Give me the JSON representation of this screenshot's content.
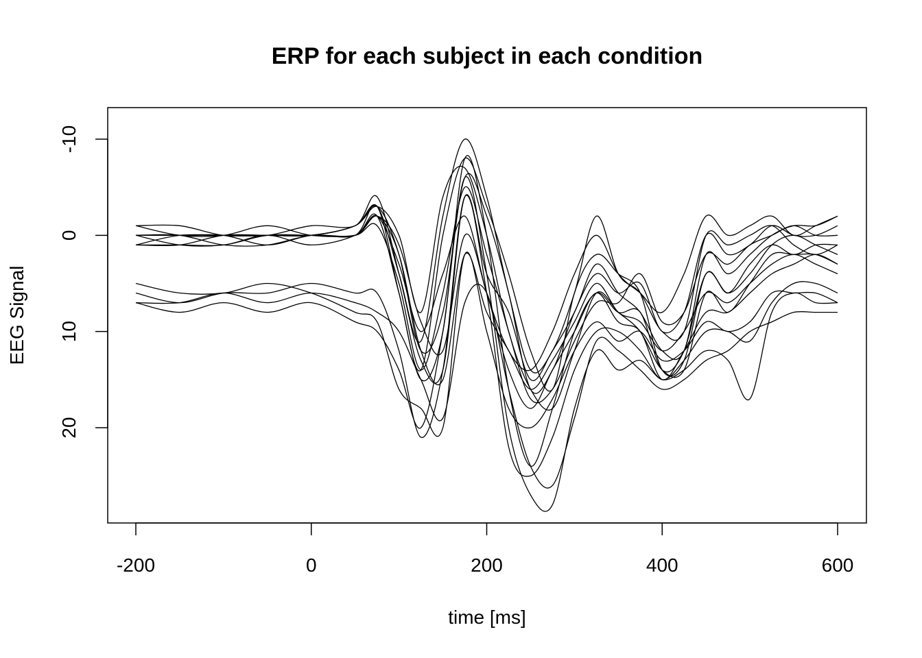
{
  "chart_data": {
    "type": "line",
    "title": "ERP for each subject in each condition",
    "xlabel": "time [ms]",
    "ylabel": "EEG Signal",
    "xlim": [
      -200,
      600
    ],
    "ylim": [
      -10,
      20
    ],
    "y_reversed": true,
    "x_ticks": [
      -200,
      0,
      200,
      400,
      600
    ],
    "y_ticks": [
      -10,
      0,
      10,
      20
    ],
    "x_tick_labels": [
      "-200",
      "0",
      "200",
      "400",
      "600"
    ],
    "y_tick_labels": [
      "-10",
      "0",
      "10",
      "20"
    ],
    "grid": false,
    "legend": "none",
    "line_color": "#000000",
    "x": [
      -200,
      -150,
      -100,
      -50,
      0,
      50,
      75,
      100,
      125,
      150,
      175,
      200,
      225,
      250,
      275,
      300,
      325,
      350,
      375,
      400,
      425,
      450,
      475,
      500,
      525,
      550,
      575,
      600
    ],
    "series": [
      {
        "values": [
          0,
          0,
          0,
          0,
          0,
          -1,
          -3,
          2,
          12,
          8,
          -6,
          -2,
          6,
          16,
          14,
          8,
          4,
          6,
          5,
          10,
          8,
          0,
          2,
          1,
          -1,
          0,
          0,
          -1
        ]
      },
      {
        "values": [
          0,
          0,
          0,
          0,
          -1,
          -1,
          -4,
          4,
          13,
          14,
          -4,
          4,
          8,
          15,
          12,
          8,
          3,
          6,
          8,
          12,
          12,
          2,
          4,
          2,
          0,
          -1,
          -1,
          -2
        ]
      },
      {
        "values": [
          1,
          1,
          1,
          0,
          0,
          0,
          -2,
          6,
          14,
          0,
          -8,
          -3,
          4,
          12,
          16,
          6,
          2,
          4,
          6,
          14,
          13,
          4,
          6,
          3,
          1,
          2,
          1,
          1
        ]
      },
      {
        "values": [
          1,
          0,
          0,
          0,
          0,
          -1,
          -3,
          0,
          8,
          -4,
          -7,
          0,
          10,
          16,
          18,
          12,
          6,
          8,
          10,
          14,
          14,
          6,
          8,
          5,
          2,
          2,
          2,
          3
        ]
      },
      {
        "values": [
          -1,
          -1,
          0,
          0,
          0,
          0,
          -2,
          3,
          10,
          4,
          -2,
          6,
          12,
          14,
          10,
          4,
          0,
          4,
          6,
          8,
          4,
          -2,
          0,
          -1,
          -2,
          0,
          -1,
          -2
        ]
      },
      {
        "values": [
          0,
          0,
          0,
          1,
          0,
          0,
          -3,
          6,
          15,
          10,
          -8,
          0,
          16,
          24,
          18,
          10,
          6,
          8,
          8,
          14,
          12,
          4,
          6,
          4,
          1,
          0,
          1,
          2
        ]
      },
      {
        "values": [
          0,
          1,
          1,
          0,
          1,
          0,
          -2,
          2,
          12,
          15,
          2,
          8,
          12,
          16,
          13,
          9,
          5,
          8,
          9,
          12,
          10,
          6,
          7,
          5,
          3,
          2,
          3,
          4
        ]
      },
      {
        "values": [
          -1,
          0,
          0,
          -1,
          0,
          0,
          -1,
          5,
          14,
          6,
          -5,
          2,
          10,
          17,
          16,
          11,
          7,
          7,
          4,
          9,
          8,
          2,
          3,
          1,
          0,
          -1,
          0,
          0
        ]
      },
      {
        "values": [
          1,
          1,
          0,
          0,
          0,
          -1,
          -3,
          4,
          11,
          -2,
          -10,
          -4,
          6,
          14,
          12,
          6,
          -2,
          4,
          6,
          10,
          10,
          0,
          1,
          0,
          -1,
          1,
          2,
          1
        ]
      },
      {
        "values": [
          0,
          0,
          1,
          1,
          0,
          0,
          -2,
          1,
          9,
          12,
          0,
          6,
          14,
          18,
          14,
          10,
          6,
          9,
          10,
          15,
          12,
          8,
          8,
          6,
          4,
          3,
          2,
          3
        ]
      },
      {
        "values": [
          6,
          7,
          6,
          6,
          5,
          6,
          6,
          12,
          21,
          14,
          -4,
          6,
          22,
          25,
          21,
          14,
          10,
          10,
          12,
          15,
          13,
          10,
          10,
          11,
          7,
          5,
          5,
          6
        ]
      },
      {
        "values": [
          7,
          8,
          7,
          8,
          7,
          9,
          10,
          14,
          20,
          10,
          -6,
          4,
          20,
          27,
          28,
          18,
          12,
          14,
          13,
          15,
          14,
          12,
          13,
          17,
          8,
          6,
          7,
          7
        ]
      },
      {
        "values": [
          5,
          6,
          6,
          5,
          6,
          8,
          9,
          16,
          18,
          20,
          2,
          10,
          18,
          20,
          17,
          12,
          9,
          11,
          10,
          13,
          12,
          9,
          10,
          9,
          6,
          6,
          6,
          7
        ]
      },
      {
        "values": [
          7,
          7,
          6,
          7,
          6,
          7,
          8,
          10,
          15,
          19,
          7,
          6,
          16,
          24,
          26,
          19,
          11,
          12,
          14,
          16,
          15,
          13,
          12,
          10,
          9,
          8,
          8,
          8
        ]
      }
    ]
  }
}
